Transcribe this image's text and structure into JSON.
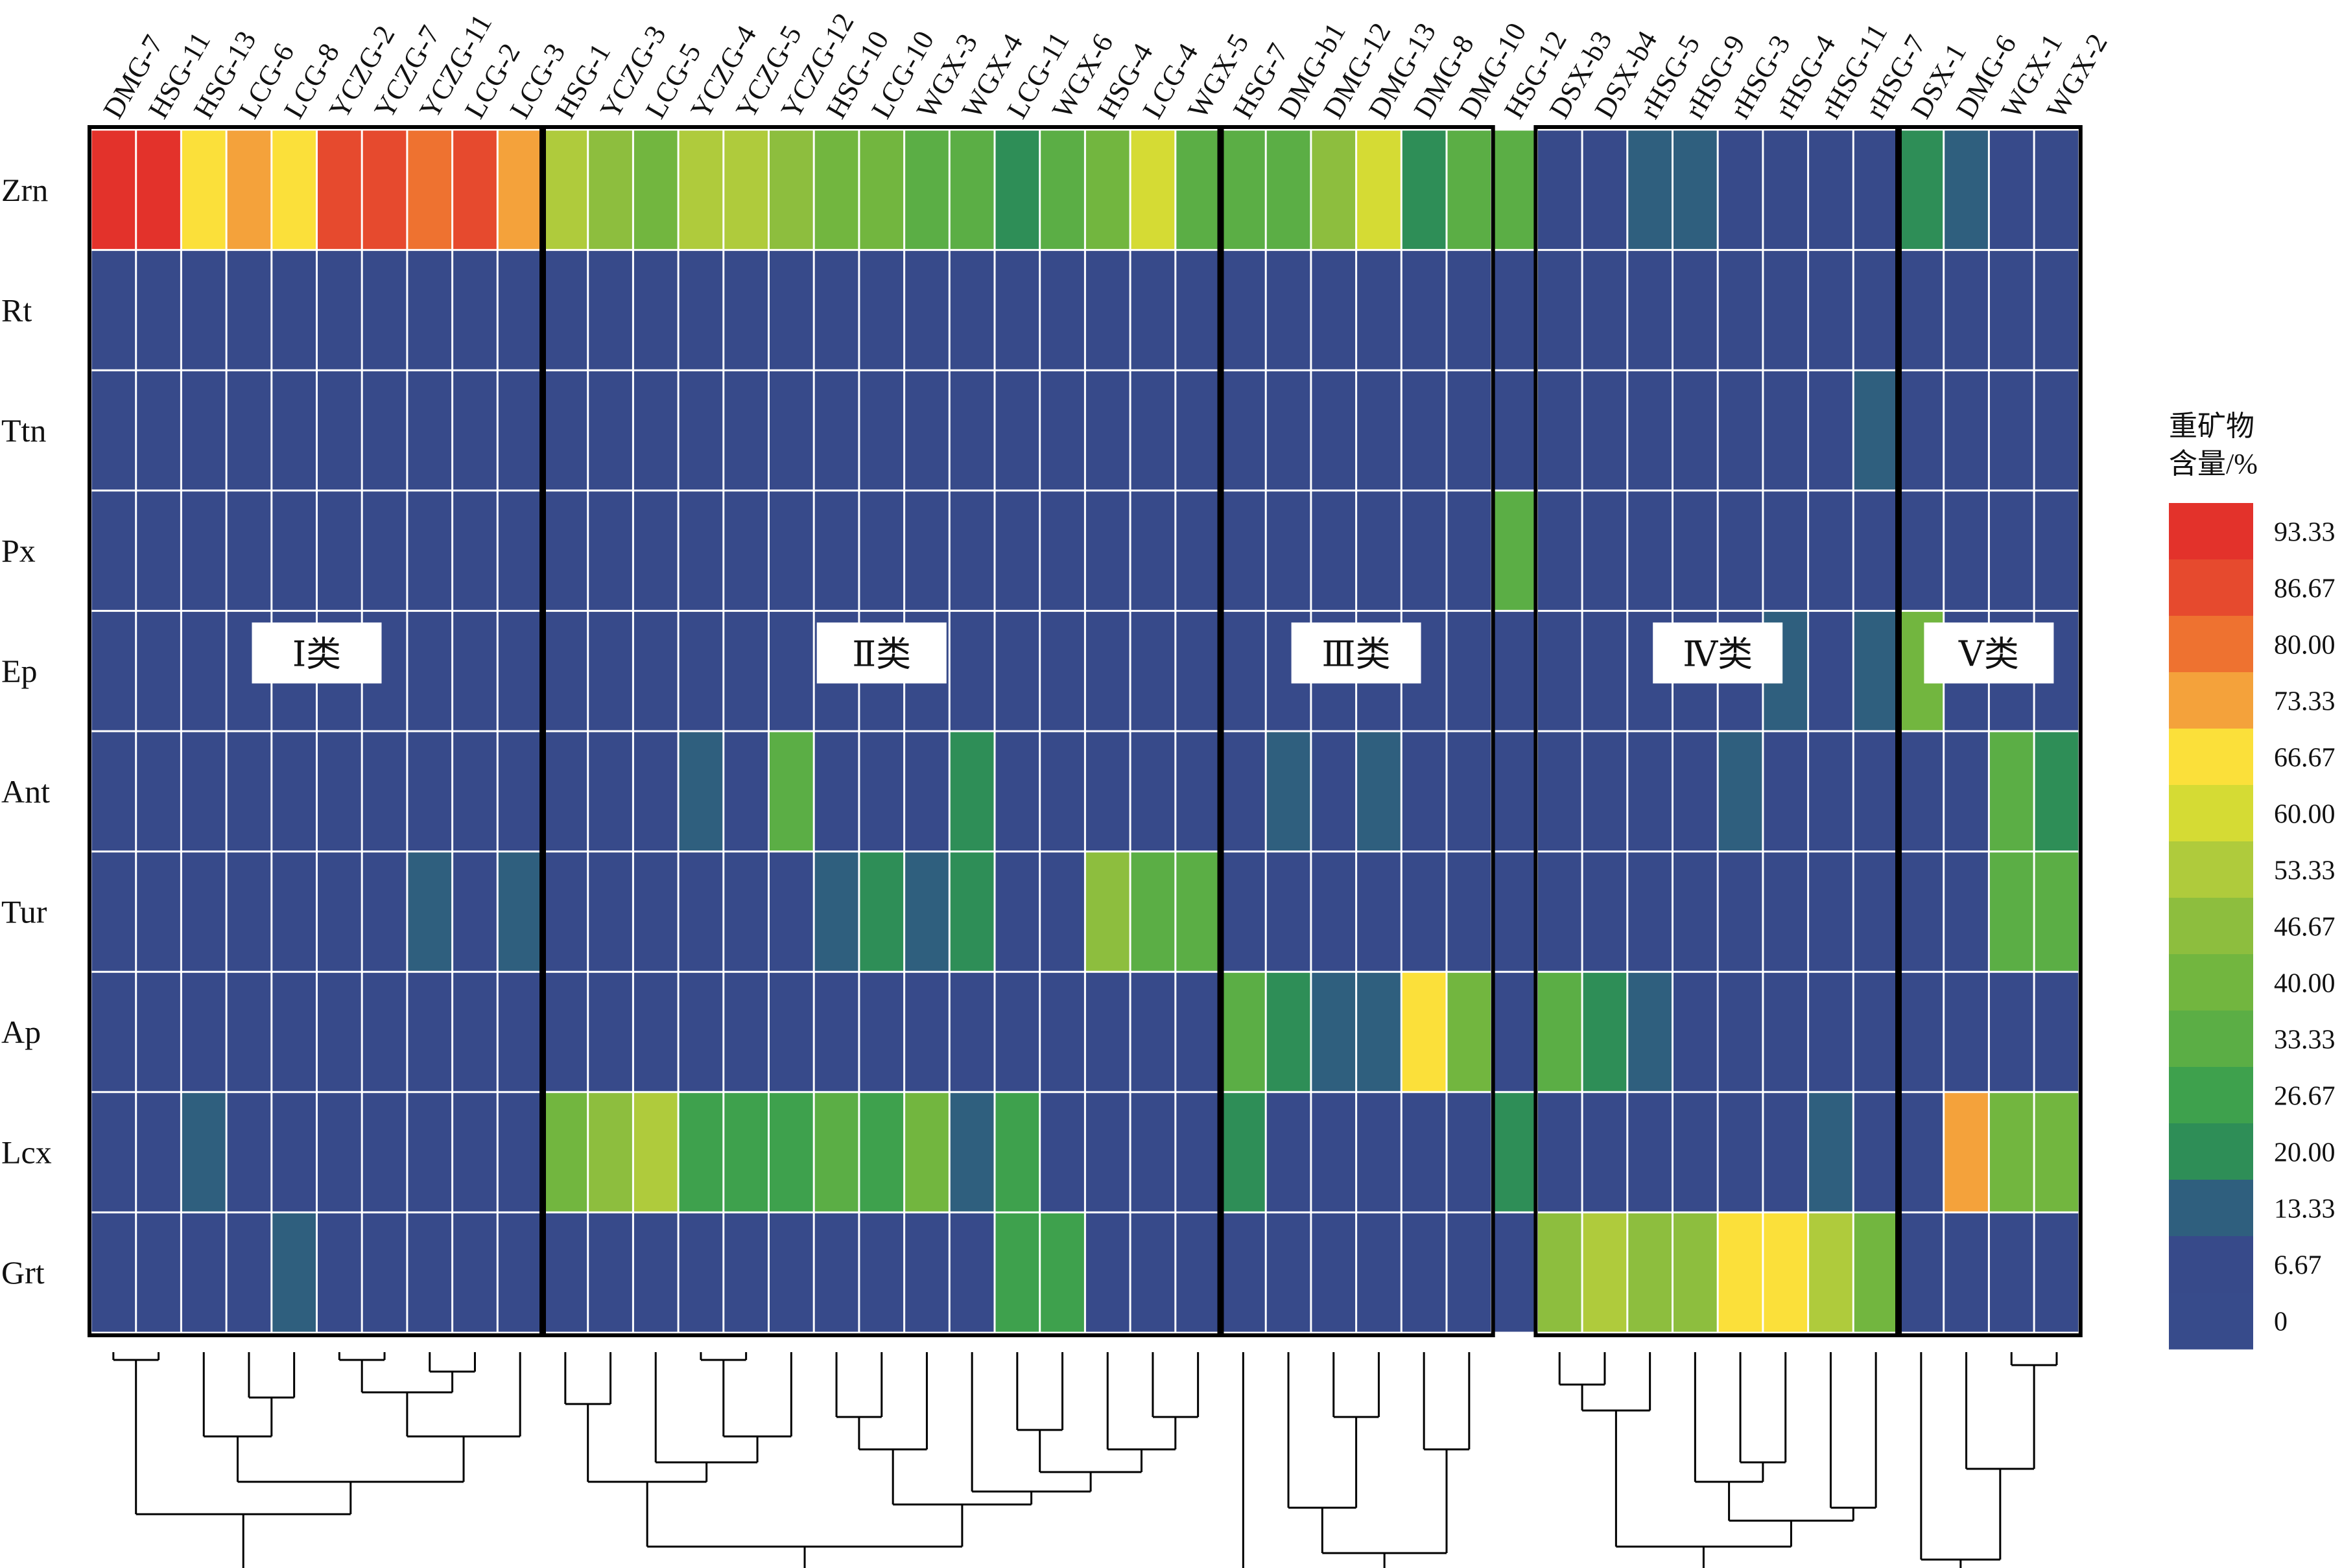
{
  "chart_data": {
    "type": "heatmap",
    "title": "",
    "xlabel": "",
    "ylabel": "",
    "legend_title": "重矿物含量/%",
    "legend_placement": "right",
    "legend_ticks": [
      "93.33",
      "86.67",
      "80.00",
      "73.33",
      "66.67",
      "60.00",
      "53.33",
      "46.67",
      "40.00",
      "33.33",
      "26.67",
      "20.00",
      "13.33",
      "6.67",
      "0"
    ],
    "legend_colors": [
      "#E3322B",
      "#E64A2E",
      "#EE7230",
      "#F4A23B",
      "#FBE03A",
      "#D5DB34",
      "#AFCB3C",
      "#8DBE3E",
      "#72B63F",
      "#5BAE45",
      "#3EA14D",
      "#2E8E57",
      "#2F5F7E",
      "#374A8A",
      "#374B8B"
    ],
    "samples": [
      "DMG-7",
      "HSG-11",
      "HSG-13",
      "LCG-6",
      "LCG-8",
      "YCZG-2",
      "YCZG-7",
      "YCZG-11",
      "LCG-2",
      "LCG-3",
      "HSG-1",
      "YCZG-3",
      "LCG-5",
      "YCZG-4",
      "YCZG-5",
      "YCZG-12",
      "HSG-10",
      "LCG-10",
      "WGX-3",
      "WGX-4",
      "LCG-11",
      "WGX-6",
      "HSG-4",
      "LCG-4",
      "WGX-5",
      "HSG-7",
      "DMG-b1",
      "DMG-12",
      "DMG-13",
      "DMG-8",
      "DMG-10",
      "HSG-12",
      "DSX-b3",
      "DSX-b4",
      "rHSG-5",
      "rHSG-9",
      "rHSG-3",
      "rHSG-4",
      "rHSG-11",
      "rHSG-7",
      "DSX-1",
      "DMG-6",
      "WGX-1",
      "WGX-2"
    ],
    "minerals": [
      "Zrn",
      "Rt",
      "Ttn",
      "Px",
      "Ep",
      "Ant",
      "Tur",
      "Ap",
      "Lcx",
      "Grt"
    ],
    "values": [
      [
        93,
        93,
        67,
        73,
        67,
        87,
        87,
        80,
        87,
        73,
        53,
        47,
        40,
        53,
        53,
        47,
        40,
        40,
        33,
        33,
        20,
        33,
        40,
        60,
        33,
        33,
        33,
        47,
        60,
        20,
        33,
        33,
        7,
        7,
        13,
        13,
        7,
        7,
        7,
        7,
        20,
        13,
        7,
        7
      ],
      [
        7,
        7,
        7,
        7,
        7,
        7,
        7,
        7,
        7,
        7,
        7,
        7,
        7,
        7,
        7,
        7,
        7,
        7,
        7,
        7,
        7,
        7,
        7,
        7,
        7,
        7,
        7,
        7,
        7,
        7,
        7,
        7,
        7,
        7,
        7,
        7,
        7,
        7,
        7,
        7,
        7,
        7,
        7,
        7
      ],
      [
        7,
        7,
        7,
        7,
        7,
        7,
        7,
        7,
        7,
        7,
        7,
        7,
        7,
        7,
        7,
        7,
        7,
        7,
        7,
        7,
        7,
        7,
        7,
        7,
        7,
        7,
        7,
        7,
        7,
        7,
        7,
        7,
        7,
        7,
        7,
        7,
        7,
        7,
        7,
        13,
        7,
        7,
        7,
        7
      ],
      [
        7,
        7,
        7,
        7,
        7,
        7,
        7,
        7,
        7,
        7,
        7,
        7,
        7,
        7,
        7,
        7,
        7,
        7,
        7,
        7,
        7,
        7,
        7,
        7,
        7,
        7,
        7,
        7,
        7,
        7,
        7,
        33,
        7,
        7,
        7,
        7,
        7,
        7,
        7,
        7,
        7,
        7,
        7,
        7
      ],
      [
        7,
        7,
        7,
        7,
        7,
        7,
        7,
        7,
        7,
        7,
        7,
        7,
        7,
        7,
        7,
        7,
        7,
        7,
        7,
        7,
        7,
        7,
        7,
        7,
        7,
        7,
        7,
        7,
        7,
        7,
        7,
        7,
        7,
        7,
        7,
        7,
        7,
        13,
        7,
        13,
        40,
        7,
        7,
        7
      ],
      [
        7,
        7,
        7,
        7,
        7,
        7,
        7,
        7,
        7,
        7,
        7,
        7,
        7,
        13,
        7,
        33,
        7,
        7,
        7,
        20,
        7,
        7,
        7,
        7,
        7,
        7,
        13,
        7,
        13,
        7,
        7,
        7,
        7,
        7,
        7,
        7,
        13,
        7,
        7,
        7,
        7,
        7,
        33,
        20
      ],
      [
        7,
        7,
        7,
        7,
        7,
        7,
        7,
        13,
        7,
        13,
        7,
        7,
        7,
        7,
        7,
        7,
        13,
        20,
        13,
        20,
        7,
        7,
        47,
        33,
        33,
        7,
        7,
        7,
        7,
        7,
        7,
        7,
        7,
        7,
        7,
        7,
        7,
        7,
        7,
        7,
        7,
        7,
        33,
        33
      ],
      [
        7,
        7,
        7,
        7,
        7,
        7,
        7,
        7,
        7,
        7,
        7,
        7,
        7,
        7,
        7,
        7,
        7,
        7,
        7,
        7,
        7,
        7,
        7,
        7,
        7,
        33,
        20,
        13,
        13,
        67,
        40,
        7,
        33,
        20,
        13,
        7,
        7,
        7,
        7,
        7,
        7,
        7,
        7,
        7
      ],
      [
        7,
        7,
        13,
        7,
        7,
        7,
        7,
        7,
        7,
        7,
        40,
        47,
        53,
        27,
        27,
        27,
        33,
        27,
        40,
        13,
        27,
        7,
        7,
        7,
        7,
        20,
        7,
        7,
        7,
        7,
        7,
        20,
        7,
        7,
        7,
        7,
        7,
        7,
        13,
        7,
        7,
        73,
        40,
        40
      ],
      [
        7,
        7,
        7,
        7,
        13,
        7,
        7,
        7,
        7,
        7,
        7,
        7,
        7,
        7,
        7,
        7,
        7,
        7,
        7,
        7,
        27,
        27,
        7,
        7,
        7,
        7,
        7,
        7,
        7,
        7,
        7,
        7,
        47,
        53,
        47,
        47,
        67,
        67,
        53,
        40,
        7,
        7,
        7,
        7
      ]
    ],
    "groups": [
      {
        "label": "Ⅰ类",
        "start": 0,
        "end": 9
      },
      {
        "label": "Ⅱ类",
        "start": 10,
        "end": 24
      },
      {
        "label": "Ⅲ类",
        "start": 25,
        "end": 30
      },
      {
        "label": "Ⅳ类",
        "start": 32,
        "end": 39
      },
      {
        "label": "Ⅴ类",
        "start": 40,
        "end": 43
      }
    ],
    "dendrogram": "hierarchical clustering tree beneath heatmap"
  }
}
